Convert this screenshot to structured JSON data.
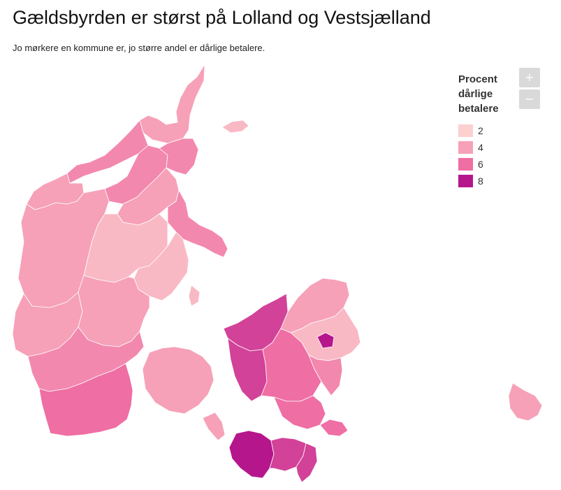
{
  "title": "Gældsbyrden er størst på Lolland og Vestsjælland",
  "subtitle": "Jo mørkere en kommune er, jo større andel er dårlige betalere.",
  "legend": {
    "title_lines": [
      "Procent",
      "dårlige",
      "betalere"
    ],
    "items": [
      {
        "label": "2",
        "color": "#fbd0cf"
      },
      {
        "label": "4",
        "color": "#f6a1b8"
      },
      {
        "label": "6",
        "color": "#ef6ea4"
      },
      {
        "label": "8",
        "color": "#b5168c"
      }
    ],
    "darkest_color": "#7a0377"
  },
  "zoom": {
    "in_label": "+",
    "out_label": "−"
  },
  "chart_data": {
    "type": "choropleth",
    "title": "Gældsbyrden er størst på Lolland og Vestsjælland",
    "subtitle": "Jo mørkere en kommune er, jo større andel er dårlige betalere.",
    "legend_title": "Procent dårlige betalere",
    "legend_breaks": [
      2,
      4,
      6,
      8
    ],
    "legend_placement": "top-right",
    "regions": [
      {
        "id": "nordjylland-north",
        "level": 4
      },
      {
        "id": "nordjylland-west",
        "level": 5
      },
      {
        "id": "nordjylland-center",
        "level": 5
      },
      {
        "id": "nordjylland-south",
        "level": 4
      },
      {
        "id": "aalborg",
        "level": 5
      },
      {
        "id": "himmerland",
        "level": 4
      },
      {
        "id": "djursland",
        "level": 5
      },
      {
        "id": "midtjylland-west",
        "level": 4
      },
      {
        "id": "midtjylland-center",
        "level": 3
      },
      {
        "id": "aarhus",
        "level": 3
      },
      {
        "id": "vestjylland-coast",
        "level": 4
      },
      {
        "id": "trekantomraadet",
        "level": 4
      },
      {
        "id": "sydvestjylland",
        "level": 5
      },
      {
        "id": "soenderjylland",
        "level": 6
      },
      {
        "id": "fyn",
        "level": 4
      },
      {
        "id": "vestsjaelland-north",
        "level": 7
      },
      {
        "id": "vestsjaelland-west",
        "level": 7
      },
      {
        "id": "midtsjaelland",
        "level": 6
      },
      {
        "id": "nordsjaelland",
        "level": 4
      },
      {
        "id": "koebenhavn-omegn",
        "level": 3
      },
      {
        "id": "koebenhavn-vest",
        "level": 8
      },
      {
        "id": "stevns",
        "level": 5
      },
      {
        "id": "sydsjaelland",
        "level": 6
      },
      {
        "id": "moen",
        "level": 6
      },
      {
        "id": "lolland",
        "level": 8
      },
      {
        "id": "guldborgsund",
        "level": 7
      },
      {
        "id": "falster-south",
        "level": 7
      },
      {
        "id": "bornholm",
        "level": 4
      },
      {
        "id": "laesoe",
        "level": 3
      },
      {
        "id": "samsoe",
        "level": 3
      },
      {
        "id": "aeroe-langeland",
        "level": 4
      }
    ]
  }
}
